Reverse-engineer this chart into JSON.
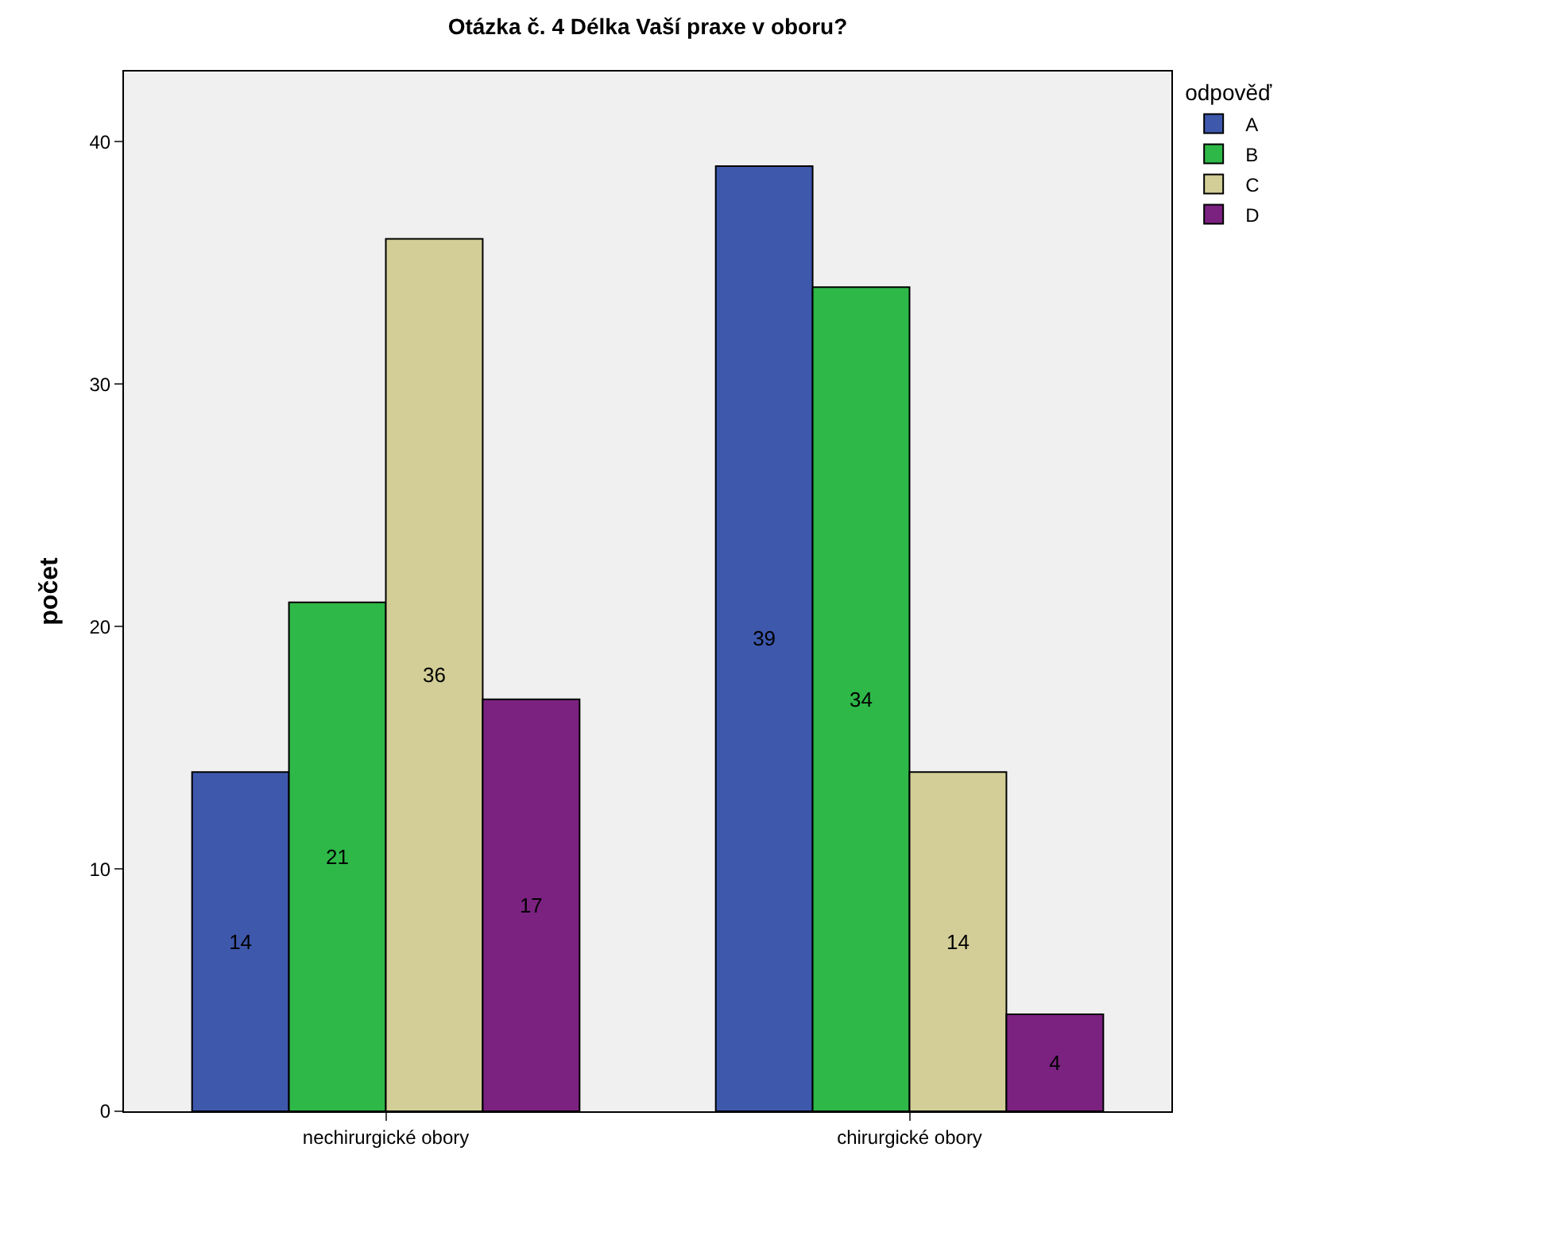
{
  "chart_data": {
    "type": "bar",
    "title": "Otázka č. 4 Délka Vaší praxe v oboru?",
    "ylabel": "počet",
    "legend_title": "odpověď",
    "categories": [
      "nechirurgické obory",
      "chirurgické obory"
    ],
    "series": [
      {
        "name": "A",
        "color": "#3e58ac",
        "values": [
          14,
          39
        ]
      },
      {
        "name": "B",
        "color": "#2eb848",
        "values": [
          21,
          34
        ]
      },
      {
        "name": "C",
        "color": "#d3ce97",
        "values": [
          36,
          14
        ]
      },
      {
        "name": "D",
        "color": "#7b2281",
        "values": [
          17,
          4
        ]
      }
    ],
    "ylim": [
      0,
      42.9
    ],
    "yticks": [
      0,
      10,
      20,
      30,
      40
    ],
    "grid": false,
    "legend": "top right",
    "data_labels": true
  }
}
